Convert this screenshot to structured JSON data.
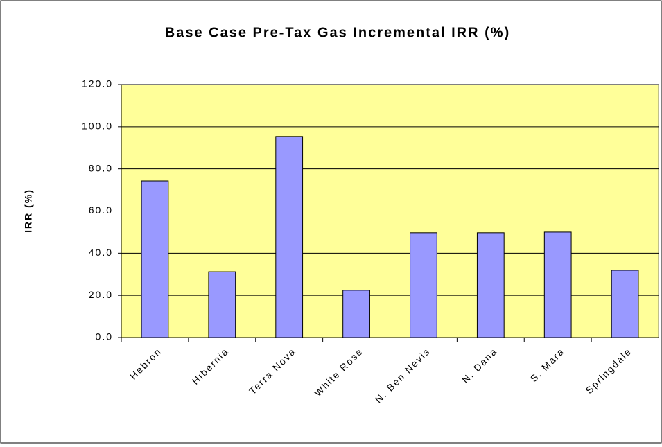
{
  "chart_data": {
    "type": "bar",
    "title": "Base Case Pre-Tax Gas Incremental IRR (%)",
    "y_label": "IRR (%)",
    "categories": [
      "Hebron",
      "Hibernia",
      "Terra Nova",
      "White Rose",
      "N. Ben Nevis",
      "N. Dana",
      "S. Mara",
      "Springdale"
    ],
    "values": [
      74.3,
      31.2,
      95.4,
      22.4,
      49.7,
      49.7,
      50.0,
      31.9
    ],
    "color": "#9999ff",
    "plot_background": "#ffff99",
    "ylim": [
      0,
      120
    ],
    "yticks": [
      {
        "value": 0,
        "label": "0.0"
      },
      {
        "value": 20,
        "label": "20.0"
      },
      {
        "value": 40,
        "label": "40.0"
      },
      {
        "value": 60,
        "label": "60.0"
      },
      {
        "value": 80,
        "label": "80.0"
      },
      {
        "value": 100,
        "label": "100.0"
      },
      {
        "value": 120,
        "label": "120.0"
      }
    ],
    "grid": true
  }
}
